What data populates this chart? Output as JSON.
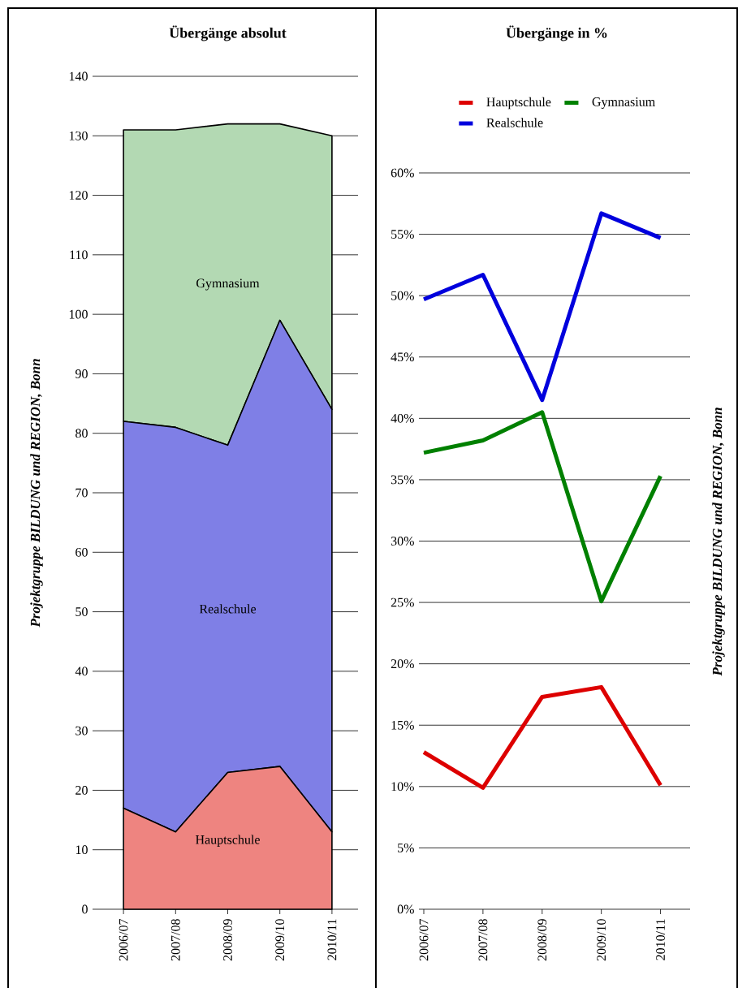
{
  "chart_data": [
    {
      "type": "area",
      "title": "Übergänge absolut",
      "stacked": true,
      "grid": "y",
      "categories": [
        "2006/07",
        "2007/08",
        "2008/09",
        "2009/10",
        "2010/11"
      ],
      "ylim": [
        0,
        140
      ],
      "yticks": [
        0,
        10,
        20,
        30,
        40,
        50,
        60,
        70,
        80,
        90,
        100,
        110,
        120,
        130,
        140
      ],
      "annotations": [
        "Projektgruppe BILDUNG und REGION, Bonn"
      ],
      "series": [
        {
          "name": "Hauptschule",
          "color": "#ee8480",
          "values": [
            17,
            13,
            23,
            24,
            13
          ]
        },
        {
          "name": "Realschule",
          "color": "#7f7fe6",
          "values": [
            65,
            68,
            55,
            75,
            71
          ]
        },
        {
          "name": "Gymnasium",
          "color": "#b3d9b3",
          "values": [
            49,
            50,
            54,
            33,
            46
          ]
        }
      ]
    },
    {
      "type": "line",
      "title": "Übergänge in %",
      "grid": "y",
      "legend": "top",
      "line_style": "solid",
      "categories": [
        "2006/07",
        "2007/08",
        "2008/09",
        "2009/10",
        "2010/11"
      ],
      "ylim": [
        0,
        60
      ],
      "yticks": [
        {
          "value": 0,
          "label": "0%"
        },
        {
          "value": 5,
          "label": "5%"
        },
        {
          "value": 10,
          "label": "10%"
        },
        {
          "value": 15,
          "label": "15%"
        },
        {
          "value": 20,
          "label": "20%"
        },
        {
          "value": 25,
          "label": "25%"
        },
        {
          "value": 30,
          "label": "30%"
        },
        {
          "value": 35,
          "label": "35%"
        },
        {
          "value": 40,
          "label": "40%"
        },
        {
          "value": 45,
          "label": "45%"
        },
        {
          "value": 50,
          "label": "50%"
        },
        {
          "value": 55,
          "label": "55%"
        },
        {
          "value": 60,
          "label": "60%"
        }
      ],
      "annotations": [
        "Projektgruppe BILDUNG und REGION, Bonn"
      ],
      "series": [
        {
          "name": "Hauptschule",
          "color": "#dd0000",
          "values": [
            12.8,
            9.9,
            17.3,
            18.1,
            10.1
          ]
        },
        {
          "name": "Gymnasium",
          "color": "#008000",
          "values": [
            37.2,
            38.2,
            40.5,
            25.1,
            35.3
          ]
        },
        {
          "name": "Realschule",
          "color": "#0000dd",
          "values": [
            49.7,
            51.7,
            41.5,
            56.7,
            54.7
          ]
        }
      ]
    }
  ]
}
